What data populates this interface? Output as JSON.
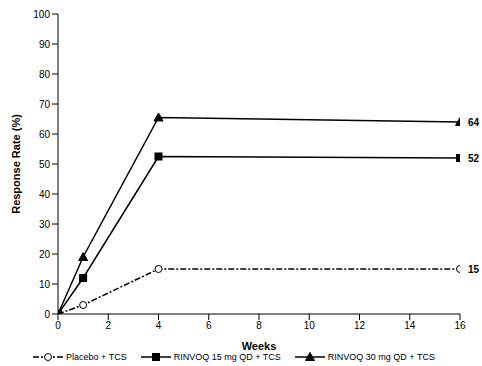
{
  "chart_data": {
    "type": "line",
    "x_label": "Weeks",
    "y_label": "Response Rate (%)",
    "x": [
      0,
      1,
      4,
      16
    ],
    "xlim": [
      0,
      16
    ],
    "xticks": [
      0,
      2,
      4,
      6,
      8,
      10,
      12,
      14,
      16
    ],
    "ylim": [
      0,
      100
    ],
    "yticks": [
      0,
      10,
      20,
      30,
      40,
      50,
      60,
      70,
      80,
      90,
      100
    ],
    "grid": false,
    "legend": "bottom",
    "series": [
      {
        "name": "Placebo + TCS",
        "color": "#000000",
        "marker": "open_circle",
        "line_style": "dashdot",
        "values": [
          0,
          3,
          15,
          15
        ],
        "value_labels": [
          null,
          null,
          null,
          "15"
        ]
      },
      {
        "name": "RINVOQ 15 mg QD + TCS",
        "color": "#000000",
        "marker": "square",
        "line_style": "solid",
        "values": [
          0,
          12,
          52.5,
          52
        ],
        "value_labels": [
          null,
          null,
          null,
          "52"
        ]
      },
      {
        "name": "RINVOQ 30 mg QD + TCS",
        "color": "#000000",
        "marker": "triangle",
        "line_style": "solid",
        "values": [
          0,
          19,
          65.5,
          64
        ],
        "value_labels": [
          null,
          null,
          null,
          "64"
        ]
      }
    ]
  }
}
